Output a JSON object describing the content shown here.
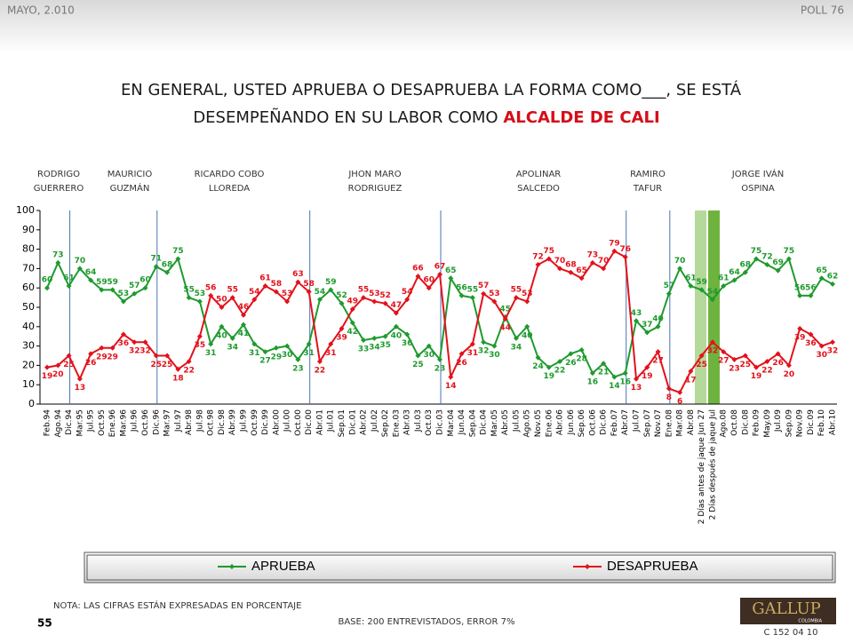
{
  "header": {
    "date": "MAYO, 2.010",
    "poll": "POLL 76"
  },
  "chart_data": {
    "type": "line",
    "title": [
      "EN GENERAL, USTED APRUEBA O DESAPRUEBA LA FORMA COMO___, SE ESTÁ",
      "DESEMPEÑANDO EN SU LABOR COMO"
    ],
    "title_highlight": "ALCALDE DE CALI",
    "periods": [
      [
        "RODRIGO",
        "GUERRERO"
      ],
      [
        "MAURICIO",
        "GUZMÁN"
      ],
      [
        "RICARDO COBO",
        "LLOREDA"
      ],
      [
        "JHON MARO",
        "RODRIGUEZ"
      ],
      [
        "APOLINAR",
        "SALCEDO"
      ],
      [
        "RAMIRO",
        "TAFUR"
      ],
      [
        "JORGE IVÁN",
        "OSPINA"
      ]
    ],
    "categories": [
      "Feb.94",
      "Ago.94",
      "Dic.94",
      "Mar.95",
      "Jul.95",
      "Oct.95",
      "Ene.96",
      "Mar.96",
      "Jul.96",
      "Oct.96",
      "Dic.96",
      "Mar.97",
      "Jul.97",
      "Abr.98",
      "Jul.98",
      "Oct.98",
      "Dic.98",
      "Abr.99",
      "Jul.99",
      "Oct.99",
      "Dic.99",
      "Abr.00",
      "Jul.00",
      "Oct.00",
      "Dic.00",
      "Abr.01",
      "Jul.01",
      "Sep.01",
      "Dic.01",
      "Abr.02",
      "Jul.02",
      "Sep.02",
      "Ene.03",
      "Abr.03",
      "Jul.03",
      "Oct.03",
      "Dic.03",
      "Mar.04",
      "Jun.04",
      "Sep.04",
      "Dic.04",
      "Mar.05",
      "Abr.05",
      "Jul.05",
      "Ago.05",
      "Nov.05",
      "Ene.06",
      "Abr.06",
      "Jun.06",
      "Sep.06",
      "Oct.06",
      "Dic.06",
      "Feb.07",
      "Abr.07",
      "Jul.07",
      "Sep.07",
      "Nov.07",
      "Ene.08",
      "Mar.08",
      "Abr.08",
      "2 Días antes de jaque Jun 27",
      "2 Días después de jaque Jul",
      "Ago.08",
      "Oct.08",
      "Dic.08",
      "Feb.09",
      "May.09",
      "Jul.09",
      "Sep.09",
      "Nov.09",
      "Dic.09",
      "Feb.10",
      "Abr.10"
    ],
    "series": [
      {
        "name": "APRUEBA",
        "color": "#1e9a2e",
        "values": [
          60,
          73,
          61,
          70,
          64,
          59,
          59,
          53,
          57,
          60,
          71,
          68,
          75,
          55,
          53,
          31,
          40,
          34,
          41,
          31,
          27,
          29,
          30,
          23,
          31,
          54,
          59,
          52,
          42,
          33,
          34,
          35,
          40,
          36,
          25,
          30,
          23,
          65,
          56,
          55,
          32,
          30,
          45,
          34,
          40,
          24,
          19,
          22,
          26,
          28,
          16,
          21,
          14,
          16,
          43,
          37,
          40,
          57,
          70,
          61,
          59,
          54,
          61,
          64,
          68,
          75,
          72,
          69,
          75,
          56,
          56,
          65,
          62
        ]
      },
      {
        "name": "DESAPRUEBA",
        "color": "#e3111b",
        "values": [
          19,
          20,
          25,
          13,
          26,
          29,
          29,
          36,
          32,
          32,
          25,
          25,
          18,
          22,
          35,
          56,
          50,
          55,
          46,
          54,
          61,
          58,
          53,
          63,
          58,
          22,
          31,
          39,
          49,
          55,
          53,
          52,
          47,
          54,
          66,
          60,
          67,
          14,
          26,
          31,
          57,
          53,
          44,
          55,
          53,
          72,
          75,
          70,
          68,
          65,
          73,
          70,
          79,
          76,
          13,
          19,
          27,
          8,
          6,
          17,
          25,
          32,
          27,
          23,
          25,
          19,
          22,
          26,
          20,
          39,
          36,
          30,
          32
        ]
      }
    ],
    "ylim": [
      0,
      100
    ],
    "yticks": [
      0,
      10,
      20,
      30,
      40,
      50,
      60,
      70,
      80,
      90,
      100
    ]
  },
  "footer": {
    "note": "NOTA: LAS CIFRAS ESTÁN EXPRESADAS EN PORCENTAJE",
    "page": "55",
    "base": "BASE: 200 ENTREVISTADOS, ERROR 7%",
    "logo": "GALLUP",
    "logo_sub": "COLOMBIA",
    "code": "C 152 04 10"
  }
}
